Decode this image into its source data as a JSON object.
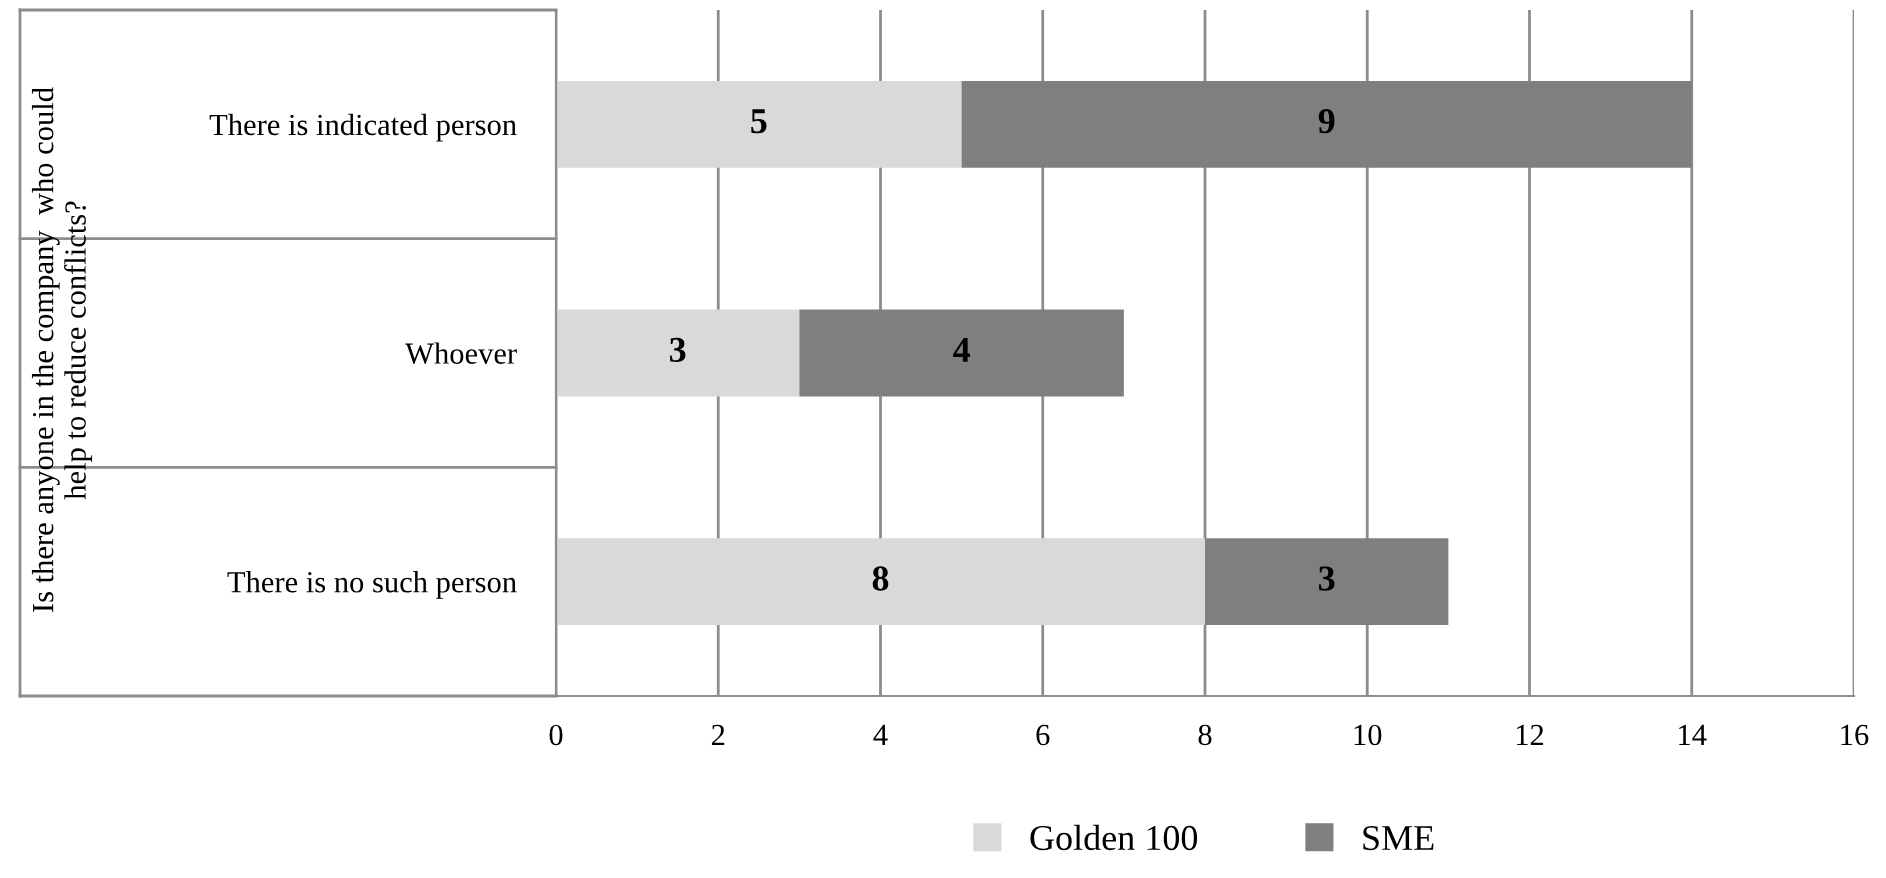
{
  "chart_data": {
    "type": "bar",
    "orientation": "horizontal",
    "stacked": true,
    "ylabel": "Is there anyone in the company  who could\nhelp to reduce conflicts?",
    "categories": [
      "There is indicated person",
      "Whoever",
      "There is no such person"
    ],
    "series": [
      {
        "name": "Golden 100",
        "color": "#d9d9d9",
        "values": [
          5,
          3,
          8
        ]
      },
      {
        "name": "SME",
        "color": "#7f7f7f",
        "values": [
          9,
          4,
          3
        ]
      }
    ],
    "xlim": [
      0,
      16
    ],
    "xticks": [
      0,
      2,
      4,
      6,
      8,
      10,
      12,
      14,
      16
    ],
    "grid": "x",
    "legend": "bottom",
    "data_labels": true
  }
}
